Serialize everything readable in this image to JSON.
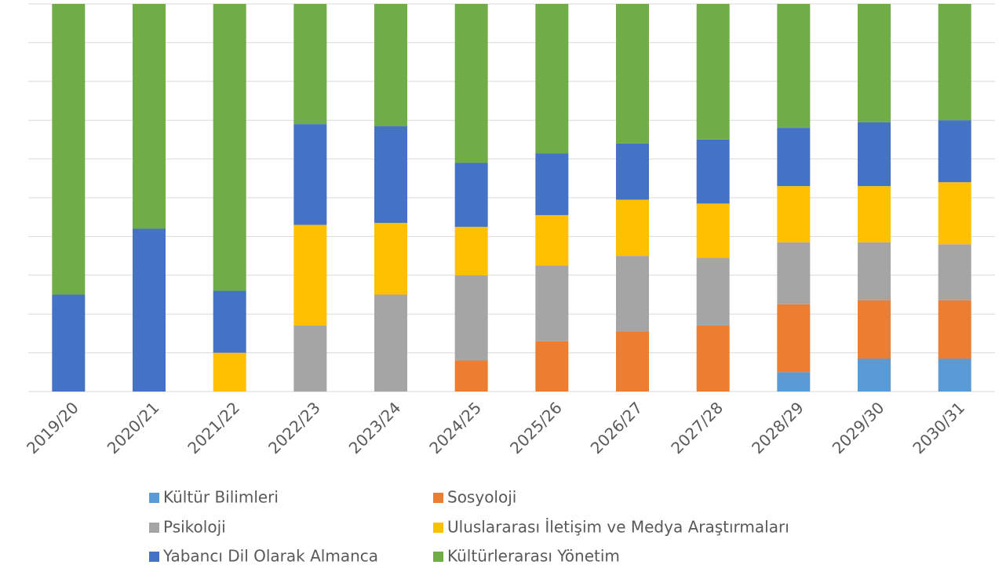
{
  "chart_data": {
    "type": "stacked_bar",
    "categories": [
      "2019/20",
      "2020/21",
      "2021/22",
      "2022/23",
      "2023/24",
      "2024/25",
      "2025/26",
      "2026/27",
      "2027/28",
      "2028/29",
      "2029/30",
      "2030/31"
    ],
    "series": [
      {
        "name": "Kültür Bilimleri",
        "color": "#5b9bd5",
        "values": [
          0,
          0,
          0,
          0,
          0,
          0,
          0,
          0,
          0,
          5,
          8.5,
          8.5
        ]
      },
      {
        "name": "Sosyoloji",
        "color": "#ed7d31",
        "values": [
          0,
          0,
          0,
          0,
          0,
          8,
          13,
          15.5,
          17,
          17.5,
          15,
          15
        ]
      },
      {
        "name": "Psikoloji",
        "color": "#a5a5a5",
        "values": [
          0,
          0,
          0,
          17,
          25,
          22,
          19.5,
          19.5,
          17.5,
          16,
          15,
          14.5
        ]
      },
      {
        "name": "Uluslararası İletişim ve Medya Araştırmaları",
        "color": "#ffc000",
        "values": [
          0,
          0,
          10,
          26,
          18.5,
          12.5,
          13,
          14.5,
          14,
          14.5,
          14.5,
          16
        ]
      },
      {
        "name": "Yabancı Dil Olarak Almanca",
        "color": "#4472c4",
        "values": [
          25,
          42,
          16,
          26,
          25,
          16.5,
          16,
          14.5,
          16.5,
          15,
          16.5,
          16
        ]
      },
      {
        "name": "Kültürlerarası Yönetim",
        "color": "#70ad47",
        "values": [
          75,
          58,
          74,
          31,
          31.5,
          41,
          38.5,
          36,
          35,
          32,
          30.5,
          30
        ]
      }
    ],
    "ylim": [
      0,
      100
    ],
    "yticks": [
      0,
      10,
      20,
      30,
      40,
      50,
      60,
      70,
      80,
      90,
      100
    ],
    "grid": true
  }
}
